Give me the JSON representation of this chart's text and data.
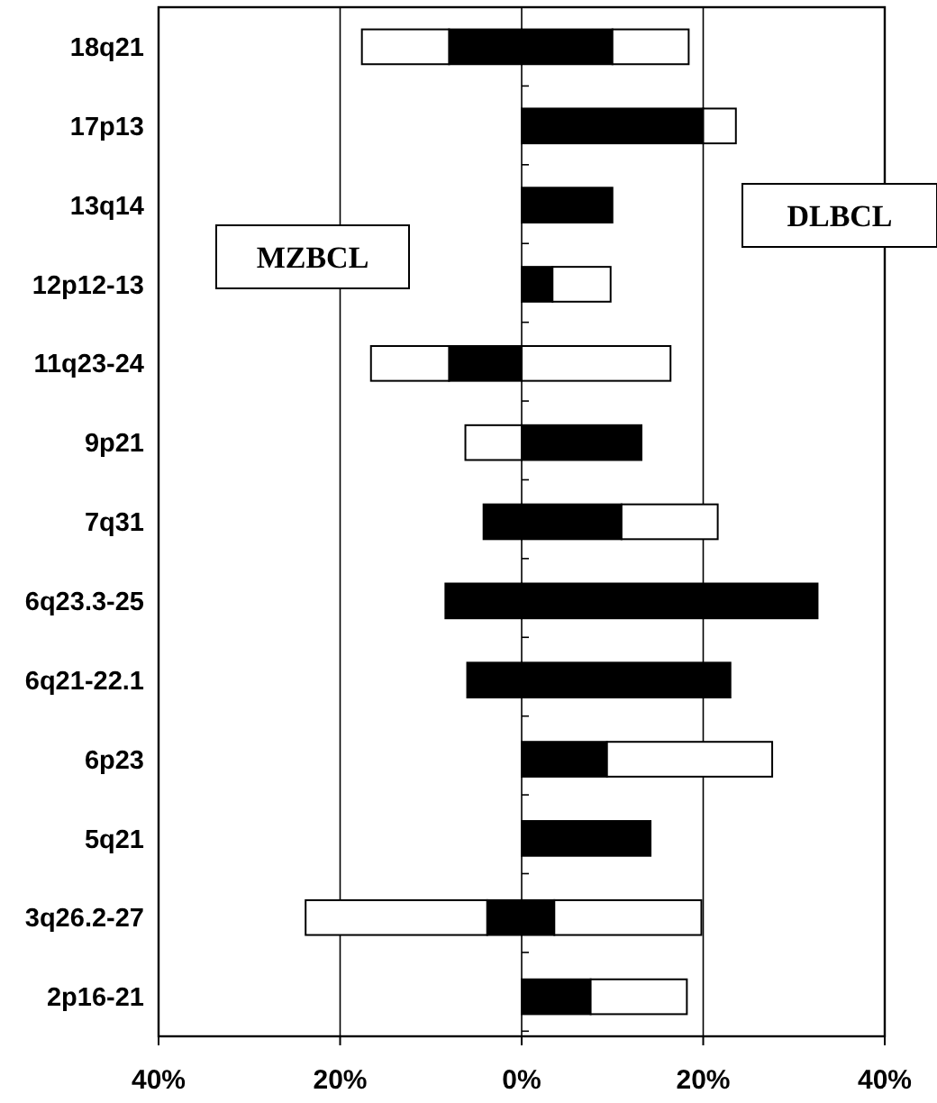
{
  "chart_data": {
    "type": "bar",
    "orientation": "horizontal",
    "stacked": true,
    "categories": [
      "18q21",
      "17p13",
      "13q14",
      "12p12-13",
      "11q23-24",
      "9p21",
      "7q31",
      "6q23.3-25",
      "6q21-22.1",
      "6p23",
      "5q21",
      "3q26.2-27",
      "2p16-21"
    ],
    "series": [
      {
        "color": "#000000",
        "values": [
          -8,
          0,
          0,
          0,
          -8,
          0,
          -4.2,
          -8.4,
          -6,
          0,
          0,
          -3.8,
          0
        ]
      },
      {
        "color": "#ffffff",
        "values": [
          -9.6,
          0,
          0,
          0,
          -8.6,
          -6.2,
          0,
          0,
          0,
          0,
          0,
          -20,
          0
        ]
      },
      {
        "color": "#000000",
        "values": [
          10,
          20,
          10,
          3.4,
          0,
          13.2,
          11,
          32.6,
          23,
          9.4,
          14.2,
          3.6,
          7.6
        ]
      },
      {
        "color": "#ffffff",
        "values": [
          8.4,
          3.6,
          0,
          6.4,
          16.4,
          0,
          10.6,
          0,
          0,
          18.2,
          0,
          16.2,
          10.6
        ]
      }
    ],
    "xlim": [
      -40,
      40
    ],
    "xticks": [
      {
        "value": -40,
        "label": "40%"
      },
      {
        "value": -20,
        "label": "20%"
      },
      {
        "value": 0,
        "label": "0%"
      },
      {
        "value": 20,
        "label": "20%"
      },
      {
        "value": 40,
        "label": "40%"
      }
    ],
    "grid": "x",
    "annotations": [
      "MZBCL",
      "DLBCL"
    ]
  }
}
